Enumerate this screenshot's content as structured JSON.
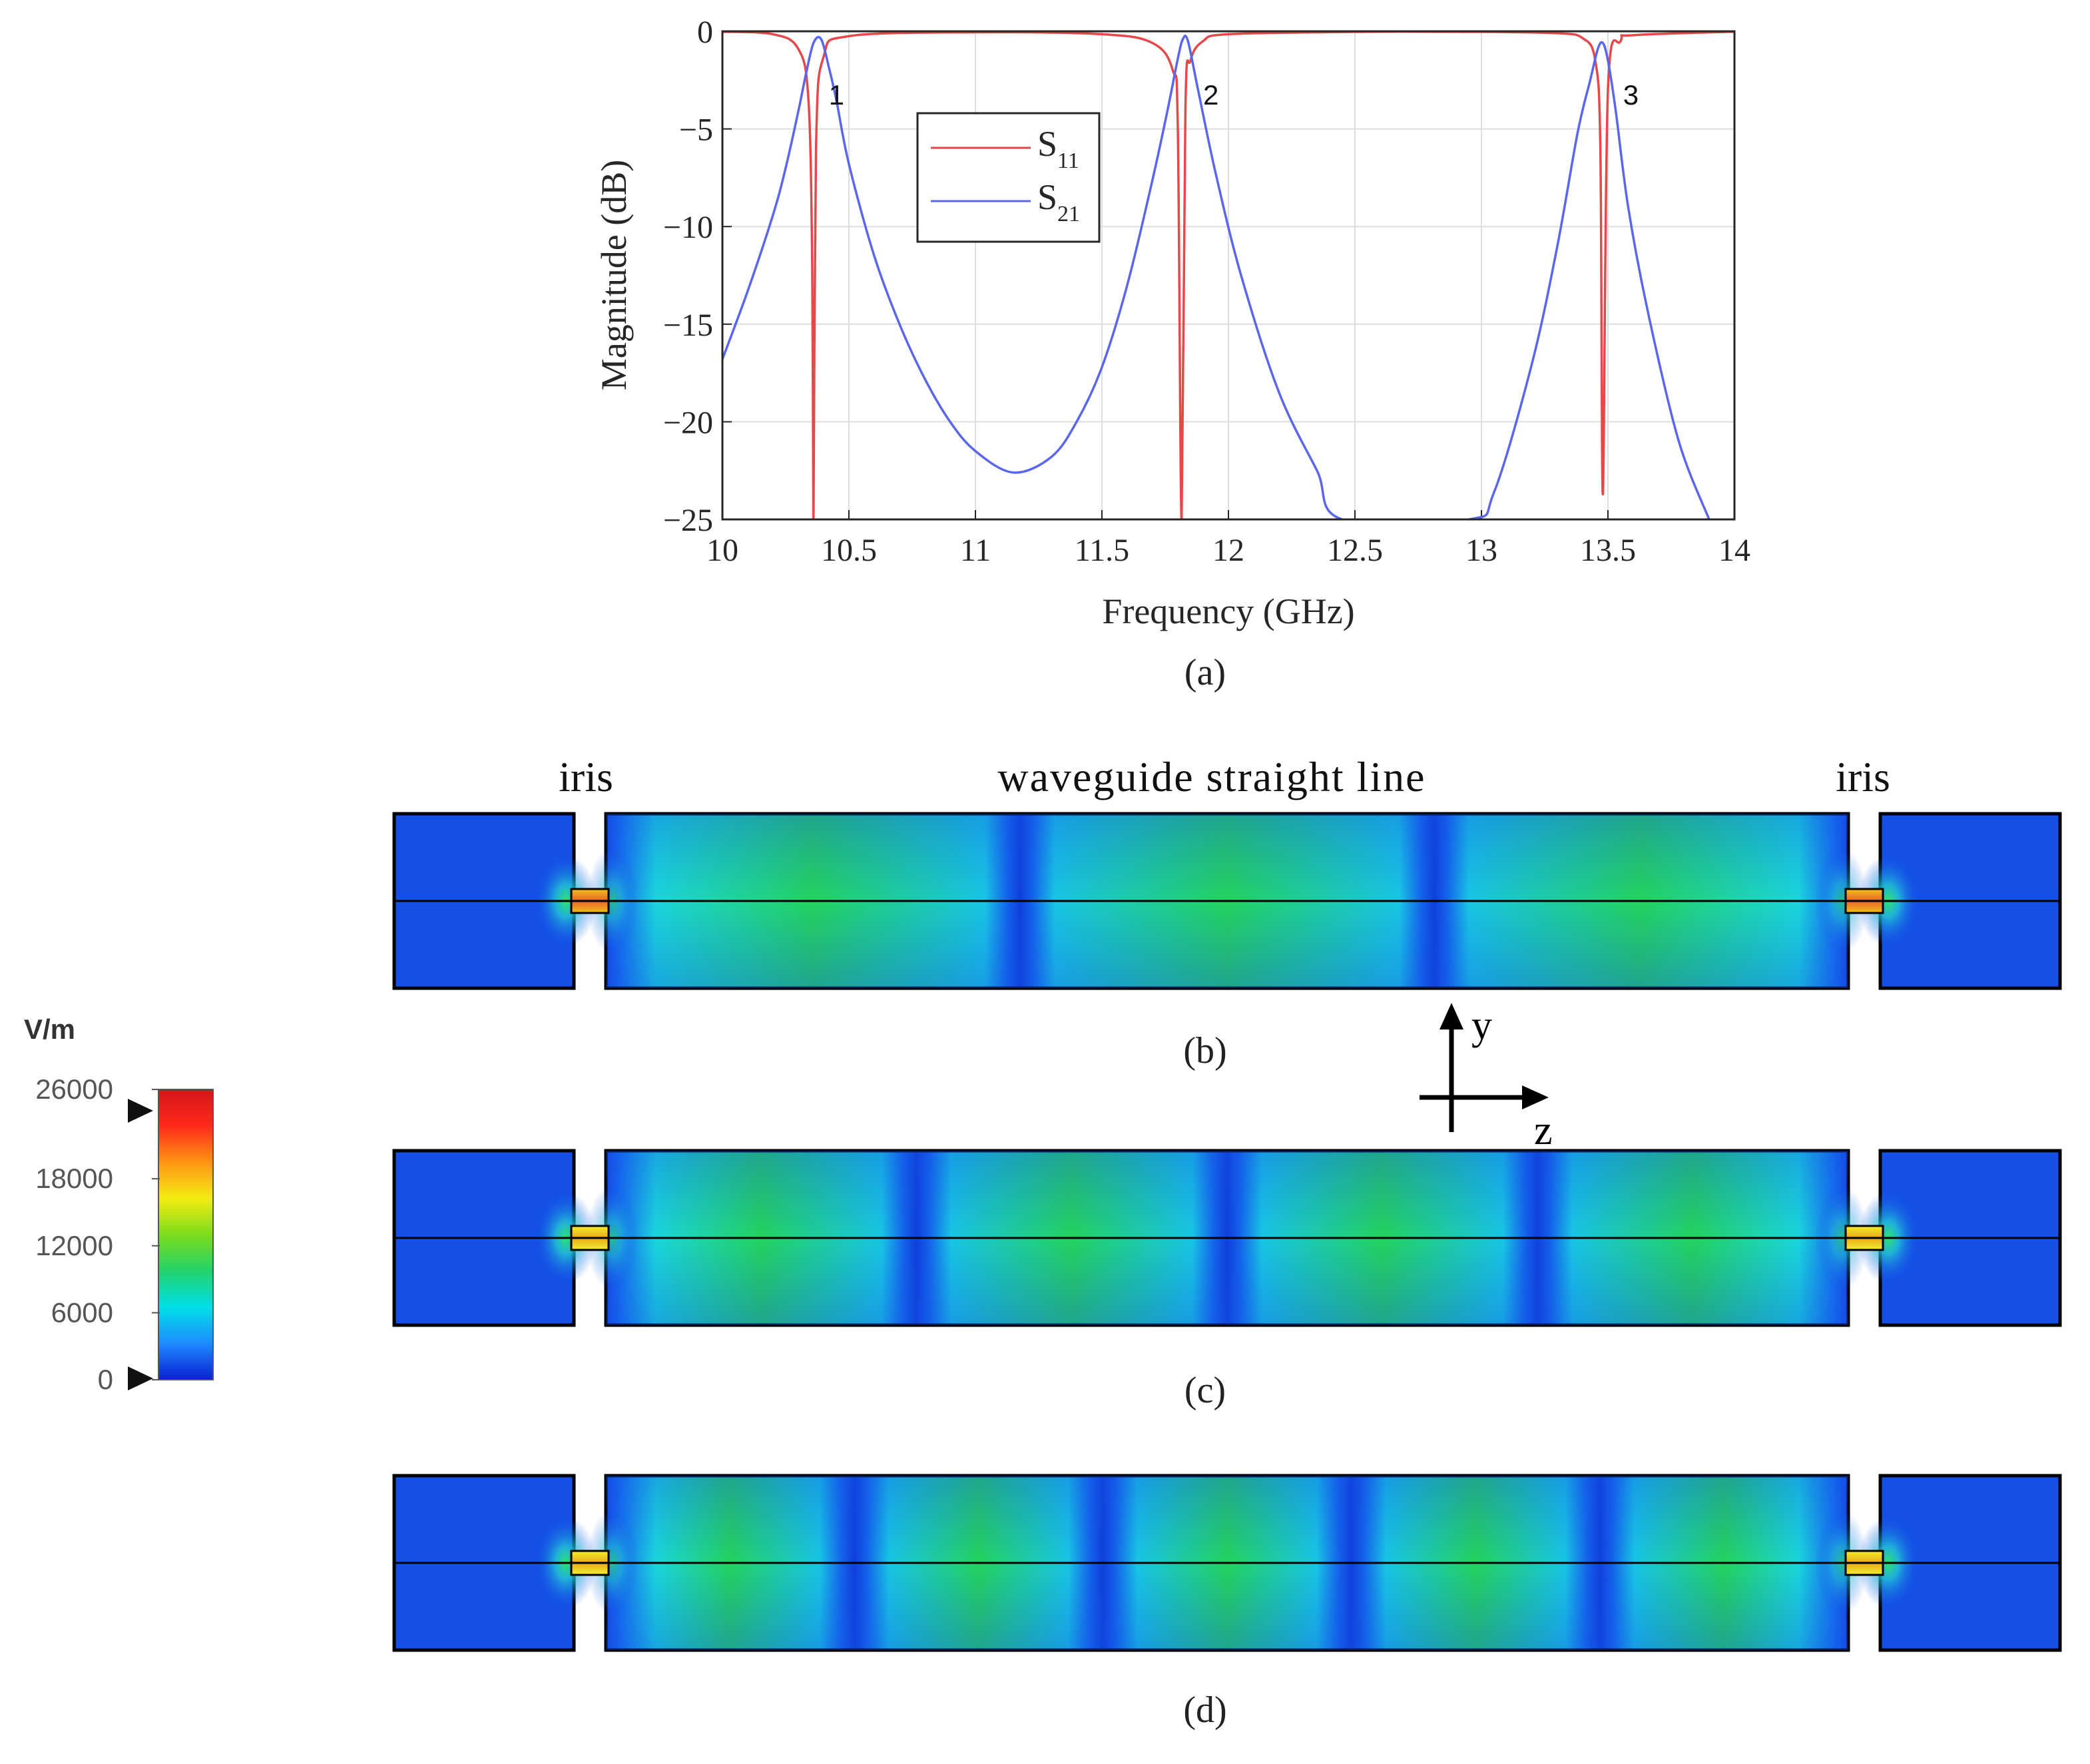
{
  "chart_data": {
    "type": "line",
    "xlabel": "Frequency (GHz)",
    "ylabel": "Magnitude (dB)",
    "xlim": [
      10,
      14
    ],
    "ylim": [
      -25,
      0
    ],
    "grid": true,
    "x_ticks": [
      "10",
      "10.5",
      "11",
      "11.5",
      "12",
      "12.5",
      "13",
      "13.5",
      "14"
    ],
    "y_ticks": [
      "0",
      "−5",
      "−10",
      "−15",
      "−20",
      "−25"
    ],
    "legend": {
      "placement": "upper-left-center",
      "entries": [
        {
          "name": "S11",
          "base": "S",
          "sub": "11",
          "color": "#e8474a"
        },
        {
          "name": "S21",
          "base": "S",
          "sub": "21",
          "color": "#5b66ee"
        }
      ]
    },
    "series": [
      {
        "name": "S11",
        "color": "#e8474a",
        "x": [
          10.0,
          10.2,
          10.3,
          10.34,
          10.355,
          10.36,
          10.37,
          10.4,
          10.5,
          11.0,
          11.5,
          11.7,
          11.78,
          11.8,
          11.815,
          11.83,
          11.85,
          11.9,
          12.0,
          12.5,
          13.0,
          13.3,
          13.4,
          13.45,
          13.47,
          13.48,
          13.5,
          13.55,
          13.6,
          14.0
        ],
        "values": [
          -0.02,
          -0.15,
          -0.9,
          -3.5,
          -12.0,
          -25.0,
          -6.0,
          -1.3,
          -0.25,
          -0.05,
          -0.15,
          -0.6,
          -2.0,
          -5.0,
          -25.0,
          -4.0,
          -1.5,
          -0.5,
          -0.15,
          -0.03,
          -0.03,
          -0.1,
          -0.35,
          -1.5,
          -6.0,
          -23.7,
          -3.0,
          -0.5,
          -0.2,
          -0.02
        ]
      },
      {
        "name": "S21",
        "color": "#5b66ee",
        "x": [
          10.0,
          10.1,
          10.2,
          10.25,
          10.3,
          10.33,
          10.36,
          10.39,
          10.42,
          10.45,
          10.5,
          10.6,
          10.7,
          10.8,
          10.9,
          11.0,
          11.15,
          11.3,
          11.4,
          11.5,
          11.6,
          11.7,
          11.76,
          11.8,
          11.82,
          11.84,
          11.88,
          11.95,
          12.05,
          12.2,
          12.35,
          12.45,
          12.95,
          13.05,
          13.2,
          13.3,
          13.38,
          13.43,
          13.46,
          13.48,
          13.5,
          13.53,
          13.58,
          13.66,
          13.78,
          13.9
        ],
        "values": [
          -16.8,
          -13.3,
          -9.4,
          -7.0,
          -4.1,
          -2.2,
          -0.6,
          -0.4,
          -1.8,
          -3.5,
          -6.8,
          -11.5,
          -15.0,
          -17.8,
          -20.0,
          -21.5,
          -22.6,
          -21.8,
          -20.0,
          -17.2,
          -13.0,
          -7.6,
          -4.0,
          -1.4,
          -0.4,
          -0.5,
          -3.0,
          -7.3,
          -12.5,
          -18.5,
          -22.5,
          -25.0,
          -25.0,
          -23.6,
          -17.0,
          -11.0,
          -5.2,
          -2.5,
          -0.9,
          -0.6,
          -1.5,
          -4.0,
          -9.0,
          -14.5,
          -21.0,
          -25.0
        ]
      }
    ],
    "annotations": [
      {
        "text": "1",
        "x": 10.42,
        "y": -3.2
      },
      {
        "text": "2",
        "x": 11.9,
        "y": -3.2
      },
      {
        "text": "3",
        "x": 13.56,
        "y": -3.2
      }
    ]
  },
  "captions": {
    "a": "(a)",
    "b": "(b)",
    "c": "(c)",
    "d": "(d)"
  },
  "field_panels": {
    "labels": {
      "iris_left": "iris",
      "center": "waveguide straight line",
      "iris_right": "iris"
    },
    "mode_nulls": {
      "b": 2,
      "c": 3,
      "d": 4
    }
  },
  "axes_glyph": {
    "y_label": "y",
    "z_label": "z"
  },
  "colorbar": {
    "unit": "V/m",
    "ticks": [
      "26000",
      "18000",
      "12000",
      "6000",
      "0"
    ],
    "tick_values": [
      26000,
      18000,
      12000,
      6000,
      0
    ],
    "range": [
      0,
      26000
    ],
    "colors": [
      "#0a1fd6",
      "#1e8cff",
      "#00e0e8",
      "#22d36a",
      "#7ddc1c",
      "#f4ec12",
      "#ff9414",
      "#ff2a1a",
      "#d6141a"
    ]
  }
}
